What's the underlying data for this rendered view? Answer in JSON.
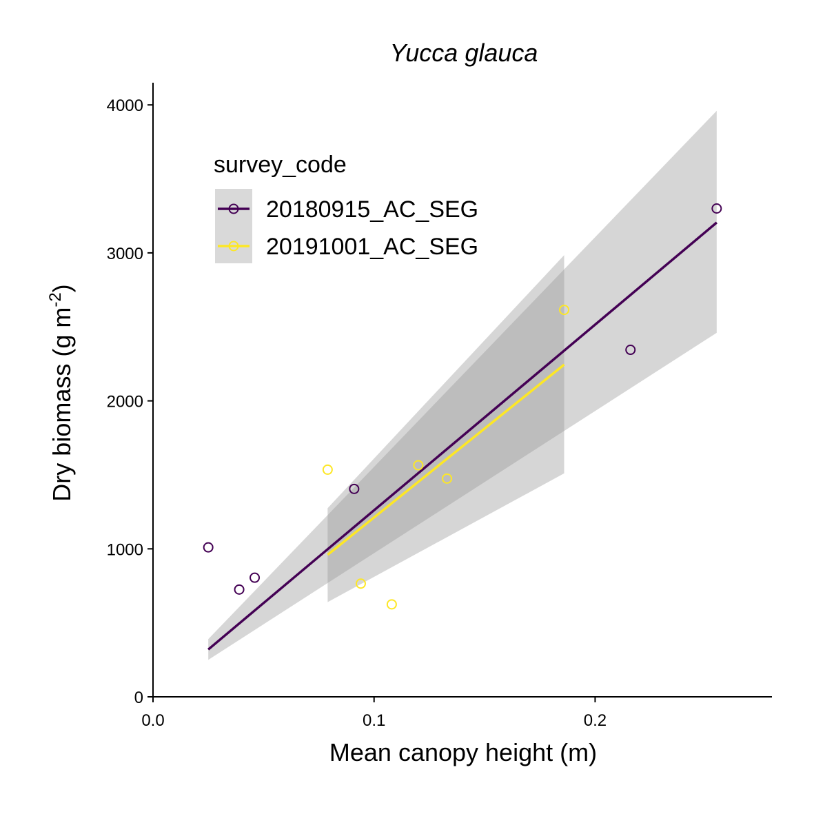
{
  "chart_data": {
    "type": "scatter",
    "title": "Yucca glauca",
    "xlabel": "Mean canopy height (m)",
    "ylabel": {
      "main": "Dry biomass (g m",
      "sup": "-2",
      "end": ")"
    },
    "xlim": [
      0,
      0.28
    ],
    "ylim": [
      0,
      4150
    ],
    "x_ticks": [
      0.0,
      0.1,
      0.2
    ],
    "x_tick_labels": [
      "0.0",
      "0.1",
      "0.2"
    ],
    "y_ticks": [
      0,
      1000,
      2000,
      3000,
      4000
    ],
    "y_tick_labels": [
      "0",
      "1000",
      "2000",
      "3000",
      "4000"
    ],
    "grid": false,
    "legend": {
      "title": "survey_code",
      "position": "top-left"
    },
    "series": [
      {
        "name": "20180915_AC_SEG",
        "color": "#440154",
        "points": [
          {
            "x": 0.025,
            "y": 1010
          },
          {
            "x": 0.039,
            "y": 725
          },
          {
            "x": 0.046,
            "y": 805
          },
          {
            "x": 0.091,
            "y": 1405
          },
          {
            "x": 0.216,
            "y": 2345
          },
          {
            "x": 0.255,
            "y": 3300
          }
        ],
        "fit": {
          "x": [
            0.025,
            0.255
          ],
          "y": [
            320,
            3205
          ],
          "ci_lower": [
            250,
            2460
          ],
          "ci_upper": [
            390,
            3960
          ]
        }
      },
      {
        "name": "20191001_AC_SEG",
        "color": "#FDE725",
        "points": [
          {
            "x": 0.079,
            "y": 1535
          },
          {
            "x": 0.094,
            "y": 765
          },
          {
            "x": 0.108,
            "y": 625
          },
          {
            "x": 0.12,
            "y": 1565
          },
          {
            "x": 0.133,
            "y": 1475
          },
          {
            "x": 0.186,
            "y": 2615
          }
        ],
        "fit": {
          "x": [
            0.079,
            0.186
          ],
          "y": [
            960,
            2245
          ],
          "ci_lower": [
            640,
            1510
          ],
          "ci_upper": [
            1275,
            2985
          ]
        }
      }
    ]
  }
}
